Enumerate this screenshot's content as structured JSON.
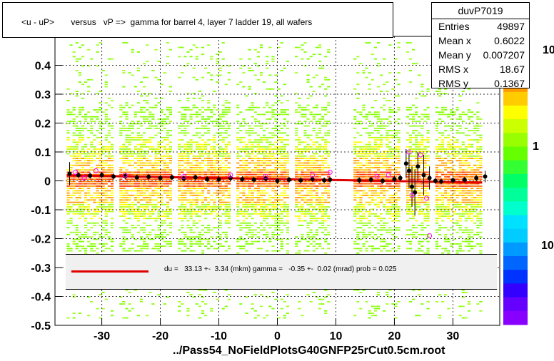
{
  "title": "<u - uP>       versus   vP =>  gamma for barrel 4, layer 7 ladder 19, all wafers",
  "stats": {
    "name": "duvP7019",
    "rows": [
      {
        "key": "Entries",
        "value": "49897"
      },
      {
        "key": "Mean x",
        "value": "0.6022"
      },
      {
        "key": "Mean y",
        "value": "0.007207"
      },
      {
        "key": "RMS x",
        "value": "18.67"
      },
      {
        "key": "RMS y",
        "value": "0.1367"
      }
    ]
  },
  "fit_text": "du =   33.13 +-  3.34 (mkm) gamma =   -0.35 +-  0.02 (mrad) prob = 0.025",
  "footer": "../Pass54_NoFieldPlotsG40GNFP25rCut0.5cm.root",
  "colors": {
    "fit_line": "#e00000",
    "profile_points": "#000000",
    "open_markers": "#ff00ff"
  },
  "colorbar_labels": {
    "top": "10",
    "mid": "1",
    "bottom": "10"
  },
  "chart_data": {
    "type": "heatmap",
    "title": "<u - uP>       versus   vP =>  gamma for barrel 4, layer 7 ladder 19, all wafers",
    "xlim": [
      -38,
      38
    ],
    "ylim": [
      -0.5,
      0.5
    ],
    "x_ticks": [
      -30,
      -20,
      -10,
      0,
      10,
      20,
      30
    ],
    "y_ticks": [
      -0.5,
      -0.4,
      -0.3,
      -0.2,
      -0.1,
      0,
      0.1,
      0.2,
      0.3,
      0.4
    ],
    "y_tick_labels": [
      "-0.5",
      "-0.4",
      "-0.3",
      "-0.2",
      "-0.1",
      "0",
      "0.1",
      "0.2",
      "0.3",
      "0.4"
    ],
    "grid": true,
    "z_scale": "log",
    "x_bands": [
      [
        -36,
        -28
      ],
      [
        -27,
        -18
      ],
      [
        -17,
        -8
      ],
      [
        -7,
        2
      ],
      [
        3,
        9
      ],
      [
        13,
        21
      ],
      [
        22,
        26
      ],
      [
        27,
        35
      ]
    ],
    "fit_line": {
      "x": [
        -36,
        35
      ],
      "y": [
        0.019,
        -0.006
      ]
    },
    "profile": {
      "x": [
        -35.5,
        -34,
        -32,
        -30,
        -28,
        -26,
        -24,
        -22,
        -20,
        -18,
        -16,
        -14,
        -12,
        -10,
        -8,
        -6,
        -4,
        -2,
        0,
        2,
        4,
        6,
        8,
        9,
        14,
        16,
        18,
        20,
        21,
        22,
        22.5,
        23,
        23.5,
        24,
        25,
        26,
        27,
        28,
        30,
        32,
        34,
        35.5
      ],
      "y": [
        0.025,
        0.02,
        0.018,
        0.02,
        0.015,
        0.016,
        0.012,
        0.014,
        0.01,
        0.012,
        0.008,
        0.012,
        0.006,
        0.005,
        0.01,
        0.006,
        0.004,
        0.008,
        0.0,
        0.004,
        0.002,
        0.006,
        0.002,
        0.004,
        0.002,
        0.004,
        0.0,
        0.006,
        0.01,
        0.06,
        0.035,
        -0.02,
        -0.04,
        0.05,
        0.02,
        0.01,
        0.0,
        -0.002,
        0.002,
        0.004,
        0.01,
        0.015
      ],
      "err": [
        0.04,
        0.01,
        0.01,
        0.01,
        0.01,
        0.01,
        0.01,
        0.01,
        0.01,
        0.01,
        0.01,
        0.01,
        0.01,
        0.01,
        0.01,
        0.01,
        0.01,
        0.01,
        0.01,
        0.01,
        0.01,
        0.01,
        0.01,
        0.01,
        0.01,
        0.01,
        0.01,
        0.01,
        0.01,
        0.05,
        0.06,
        0.07,
        0.08,
        0.05,
        0.07,
        0.04,
        0.01,
        0.01,
        0.01,
        0.01,
        0.01,
        0.02
      ]
    },
    "open_markers": {
      "x": [
        -34.5,
        -33,
        -31,
        -26,
        -16,
        -8,
        -2,
        6,
        9,
        17,
        19,
        22.5,
        23,
        24.5,
        25.5,
        26
      ],
      "y": [
        0.03,
        0.01,
        0.035,
        0.02,
        0.015,
        0.02,
        0.015,
        0.02,
        0.03,
        0.015,
        0.02,
        0.1,
        -0.05,
        0.09,
        -0.06,
        -0.19
      ]
    }
  }
}
